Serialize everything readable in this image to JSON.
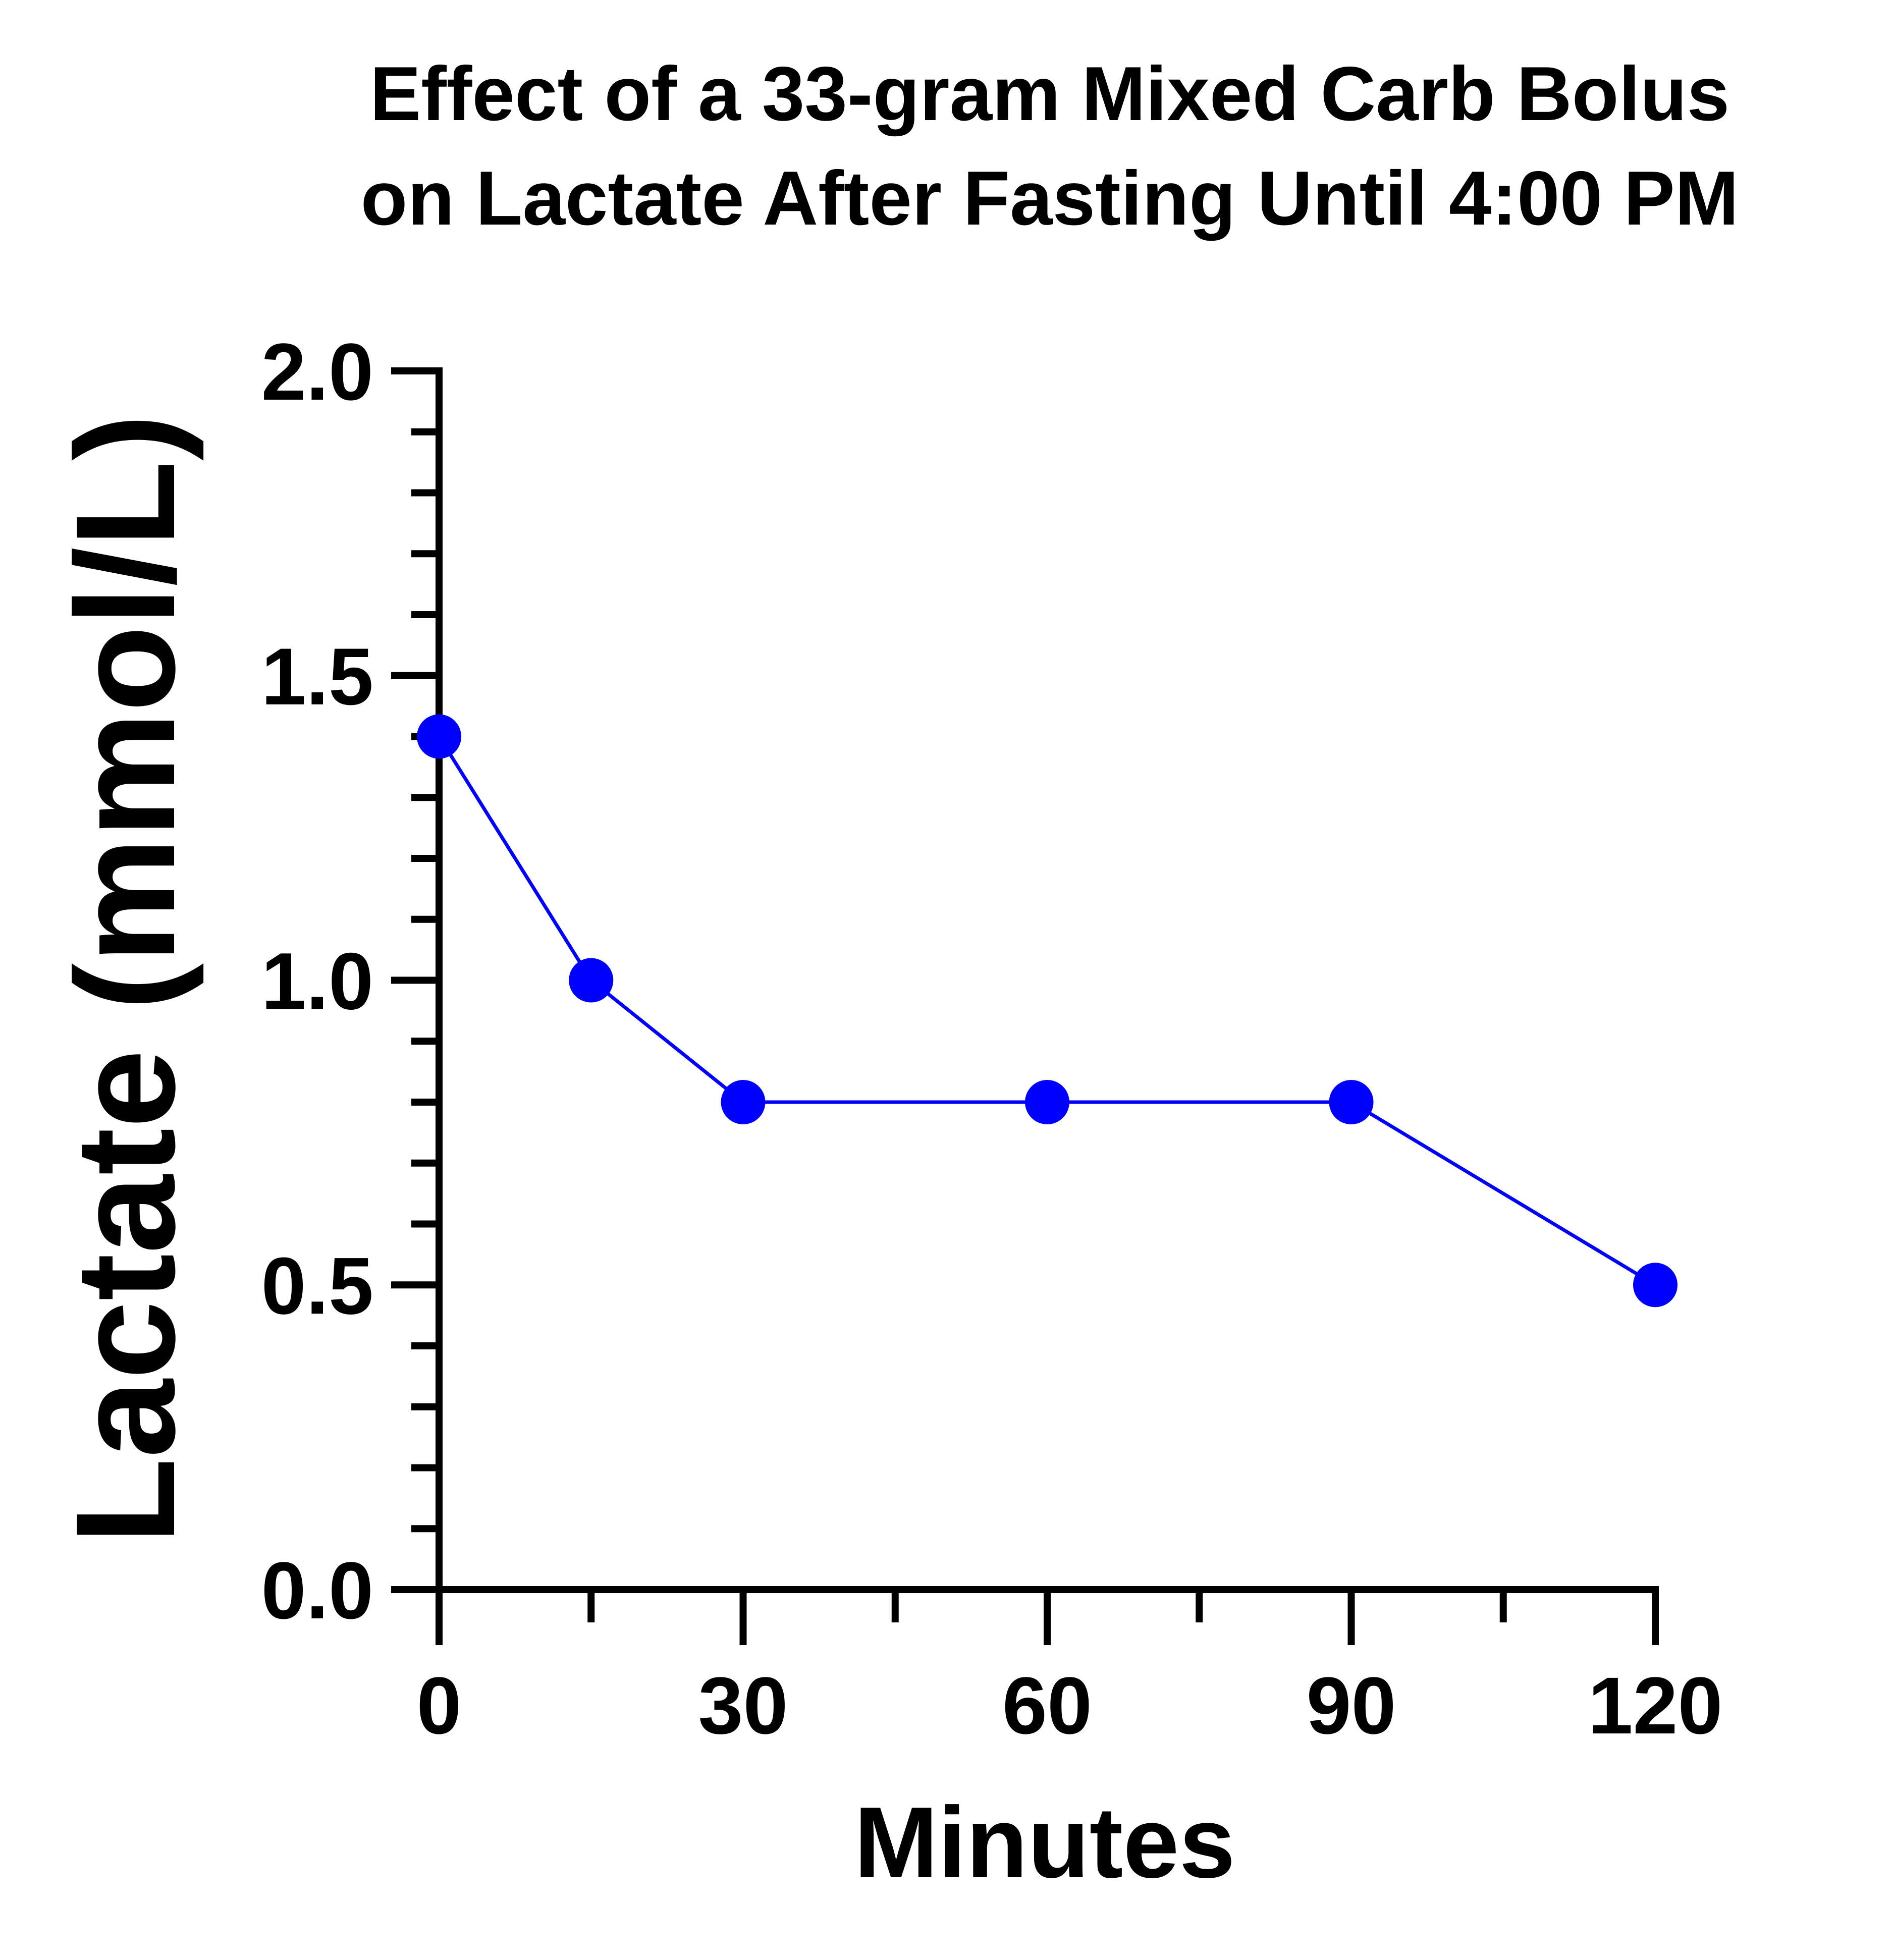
{
  "chart_data": {
    "type": "line",
    "title": "Effect of a 33-gram Mixed Carb Bolus",
    "subtitle": "on Lactate After Fasting Until 4:00 PM",
    "xlabel": "Minutes",
    "ylabel": "Lactate (mmol/L)",
    "xlim": [
      0,
      120
    ],
    "ylim": [
      0.0,
      2.0
    ],
    "x_ticks": [
      "0",
      "30",
      "60",
      "90",
      "120"
    ],
    "y_ticks": [
      "0.0",
      "0.5",
      "1.0",
      "1.5",
      "2.0"
    ],
    "grid": false,
    "legend": "none",
    "series": [
      {
        "x": [
          0,
          15,
          30,
          60,
          90,
          120
        ],
        "values": [
          1.4,
          1.0,
          0.8,
          0.8,
          0.8,
          0.5
        ],
        "color": "#0000ff"
      }
    ]
  }
}
